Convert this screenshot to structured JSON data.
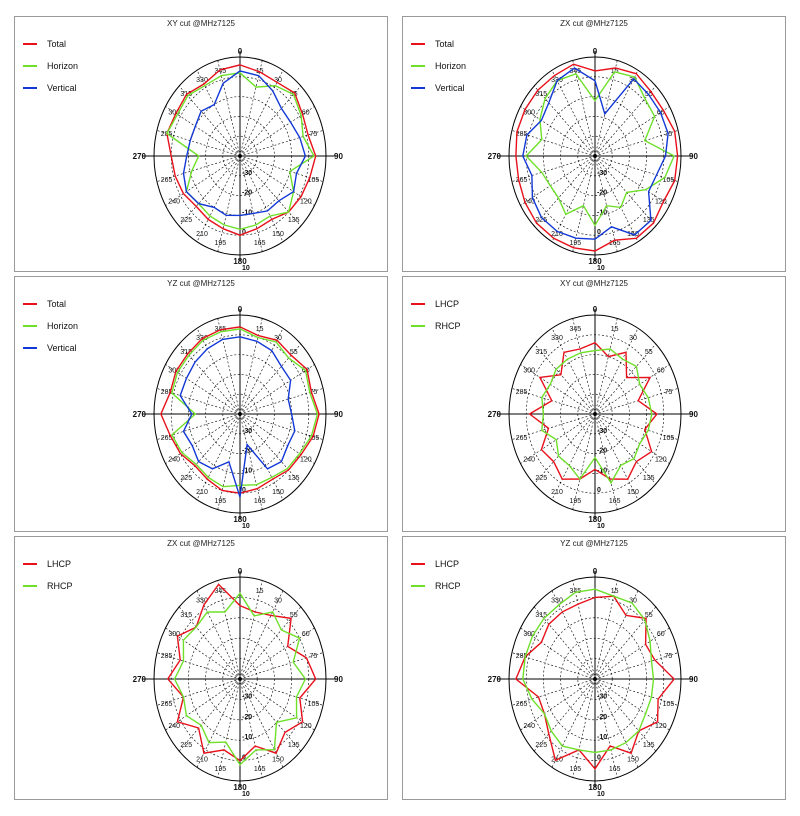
{
  "colors": {
    "total": "#e8101a",
    "horizon": "#6fe02a",
    "vertical": "#1238d6",
    "lhcp": "#e8101a",
    "rhcp": "#6fe02a",
    "grid": "#000000"
  },
  "chart_data": [
    {
      "type": "polar-line",
      "title": "XY cut @MHz7125",
      "angle_labels": [
        "0",
        "15",
        "30",
        "55",
        "60",
        "75",
        "90",
        "105",
        "120",
        "135",
        "150",
        "165",
        "180",
        "195",
        "210",
        "225",
        "240",
        "265",
        "270",
        "285",
        "300",
        "315",
        "330",
        "345"
      ],
      "radial_labels": [
        "-30",
        "-20",
        "-10",
        "0",
        "10"
      ],
      "rlim": [
        -40,
        10
      ],
      "series": [
        {
          "name": "Total",
          "color_key": "total",
          "values": [
            6,
            4,
            3,
            5,
            2,
            1,
            4,
            2,
            1,
            0,
            -3,
            -2,
            0,
            -2,
            -3,
            -4,
            -2,
            -1,
            0,
            4,
            3,
            4,
            2,
            5
          ]
        },
        {
          "name": "Horizon",
          "color_key": "horizon",
          "values": [
            2,
            -4,
            1,
            4,
            1,
            -2,
            3,
            -10,
            -4,
            0,
            -5,
            -4,
            -3,
            -4,
            -5,
            -6,
            -4,
            -11,
            -16,
            4,
            2,
            3,
            1,
            2
          ]
        },
        {
          "name": "Vertical",
          "color_key": "vertical",
          "values": [
            3,
            2,
            -2,
            -6,
            -6,
            -4,
            -2,
            -6,
            -4,
            -8,
            -8,
            -10,
            -10,
            -9,
            -10,
            -6,
            -4,
            -6,
            -9,
            -10,
            -10,
            -8,
            -10,
            -2
          ]
        }
      ]
    },
    {
      "type": "polar-line",
      "title": "ZX cut @MHz7125",
      "angle_labels": [
        "0",
        "15",
        "30",
        "55",
        "60",
        "75",
        "90",
        "105",
        "120",
        "135",
        "150",
        "165",
        "180",
        "195",
        "210",
        "225",
        "240",
        "265",
        "270",
        "285",
        "300",
        "315",
        "330",
        "345"
      ],
      "radial_labels": [
        "-30",
        "-20",
        "-10",
        "0",
        "10"
      ],
      "rlim": [
        -40,
        10
      ],
      "series": [
        {
          "name": "Total",
          "color_key": "total",
          "values": [
            3,
            6,
            8,
            6,
            6,
            8,
            8,
            8,
            6,
            8,
            8,
            4,
            8,
            8,
            8,
            8,
            7,
            6,
            6,
            7,
            7,
            7,
            7,
            8
          ]
        },
        {
          "name": "Horizon",
          "color_key": "horizon",
          "values": [
            -12,
            4,
            6,
            1,
            0,
            -10,
            6,
            2,
            -6,
            -14,
            -10,
            -14,
            -5,
            -14,
            -6,
            -10,
            -10,
            -8,
            0,
            -8,
            -3,
            1,
            4,
            3
          ]
        },
        {
          "name": "Vertical",
          "color_key": "vertical",
          "values": [
            -2,
            -18,
            5,
            4,
            4,
            4,
            1,
            -3,
            -4,
            6,
            6,
            -3,
            2,
            3,
            4,
            4,
            2,
            -2,
            2,
            1,
            -4,
            -2,
            4,
            6
          ]
        }
      ]
    },
    {
      "type": "polar-line",
      "title": "YZ cut @MHz7125",
      "angle_labels": [
        "0",
        "15",
        "30",
        "55",
        "60",
        "75",
        "90",
        "105",
        "120",
        "135",
        "150",
        "165",
        "180",
        "195",
        "210",
        "225",
        "240",
        "265",
        "270",
        "285",
        "300",
        "315",
        "330",
        "345"
      ],
      "radial_labels": [
        "-30",
        "-20",
        "-10",
        "0",
        "10"
      ],
      "rlim": [
        -40,
        10
      ],
      "series": [
        {
          "name": "Total",
          "color_key": "total",
          "values": [
            4,
            1,
            3,
            2,
            5,
            3,
            6,
            4,
            1,
            0,
            -2,
            -1,
            0,
            0,
            -2,
            -3,
            0,
            2,
            6,
            2,
            3,
            3,
            4,
            4
          ]
        },
        {
          "name": "Horizon",
          "color_key": "horizon",
          "values": [
            3,
            0,
            2,
            0,
            4,
            2,
            5,
            3,
            0,
            -1,
            -3,
            -3,
            -4,
            -2,
            -3,
            -4,
            -1,
            1,
            -14,
            1,
            2,
            2,
            3,
            3
          ]
        },
        {
          "name": "Vertical",
          "color_key": "vertical",
          "values": [
            -1,
            -2,
            -3,
            -6,
            -6,
            -11,
            -10,
            -7,
            -8,
            -6,
            -8,
            -24,
            2,
            -15,
            -8,
            -6,
            -8,
            -6,
            -12,
            -4,
            -4,
            -3,
            -2,
            -1
          ]
        }
      ]
    },
    {
      "type": "polar-line",
      "title": "XY cut @MHz7125",
      "angle_labels": [
        "0",
        "15",
        "30",
        "55",
        "60",
        "75",
        "90",
        "105",
        "120",
        "135",
        "150",
        "165",
        "180",
        "195",
        "210",
        "225",
        "240",
        "265",
        "270",
        "285",
        "300",
        "315",
        "330",
        "345"
      ],
      "radial_labels": [
        "-30",
        "-20",
        "-10",
        "0",
        "10"
      ],
      "rlim": [
        -40,
        10
      ],
      "series": [
        {
          "name": "LHCP",
          "color_key": "lhcp",
          "values": [
            -4,
            -10,
            -4,
            -14,
            -3,
            -14,
            -4,
            -10,
            -2,
            -6,
            -2,
            -6,
            -12,
            -6,
            -2,
            -6,
            -4,
            -12,
            -2,
            -14,
            -3,
            -12,
            -4,
            -6
          ]
        },
        {
          "name": "RHCP",
          "color_key": "rhcp",
          "values": [
            -8,
            -6,
            -8,
            -6,
            -10,
            -8,
            -7,
            -8,
            -10,
            -8,
            -10,
            -4,
            -18,
            -6,
            -10,
            -10,
            -14,
            -8,
            -10,
            -8,
            -10,
            -8,
            -8,
            -8
          ]
        }
      ]
    },
    {
      "type": "polar-line",
      "title": "ZX cut @MHz7125",
      "angle_labels": [
        "0",
        "15",
        "30",
        "55",
        "60",
        "75",
        "90",
        "105",
        "120",
        "135",
        "150",
        "165",
        "180",
        "195",
        "210",
        "225",
        "240",
        "265",
        "270",
        "285",
        "300",
        "315",
        "330",
        "345"
      ],
      "radial_labels": [
        "-30",
        "-20",
        "-10",
        "0",
        "10"
      ],
      "rlim": [
        -40,
        10
      ],
      "series": [
        {
          "name": "LHCP",
          "color_key": "lhcp",
          "values": [
            -4,
            -6,
            -4,
            2,
            -8,
            0,
            4,
            -4,
            2,
            -3,
            2,
            -6,
            0,
            -4,
            2,
            -6,
            2,
            -6,
            2,
            -4,
            2,
            -4,
            2,
            8
          ]
        },
        {
          "name": "RHCP",
          "color_key": "rhcp",
          "values": [
            2,
            -8,
            -2,
            -6,
            0,
            -8,
            -2,
            -6,
            -2,
            -10,
            0,
            -4,
            2,
            -8,
            -4,
            -8,
            -4,
            -6,
            -2,
            -6,
            -2,
            -4,
            -2,
            -6
          ]
        }
      ]
    },
    {
      "type": "polar-line",
      "title": "YZ cut @MHz7125",
      "angle_labels": [
        "0",
        "15",
        "30",
        "55",
        "60",
        "75",
        "90",
        "105",
        "120",
        "135",
        "150",
        "165",
        "180",
        "195",
        "210",
        "225",
        "240",
        "265",
        "270",
        "285",
        "300",
        "315",
        "330",
        "345"
      ],
      "radial_labels": [
        "-30",
        "-20",
        "-10",
        "0",
        "10"
      ],
      "rlim": [
        -40,
        10
      ],
      "series": [
        {
          "name": "LHCP",
          "color_key": "lhcp",
          "values": [
            0,
            2,
            -4,
            2,
            -6,
            -4,
            6,
            -2,
            2,
            -4,
            2,
            -6,
            4,
            -4,
            6,
            -2,
            -6,
            -6,
            6,
            2,
            -4,
            -2,
            -2,
            -2
          ]
        },
        {
          "name": "RHCP",
          "color_key": "rhcp",
          "values": [
            4,
            2,
            3,
            1,
            -3,
            -6,
            -6,
            -6,
            -6,
            -4,
            -4,
            -4,
            -4,
            -4,
            -2,
            -4,
            -6,
            -2,
            2,
            2,
            2,
            2,
            2,
            4
          ]
        }
      ]
    }
  ]
}
